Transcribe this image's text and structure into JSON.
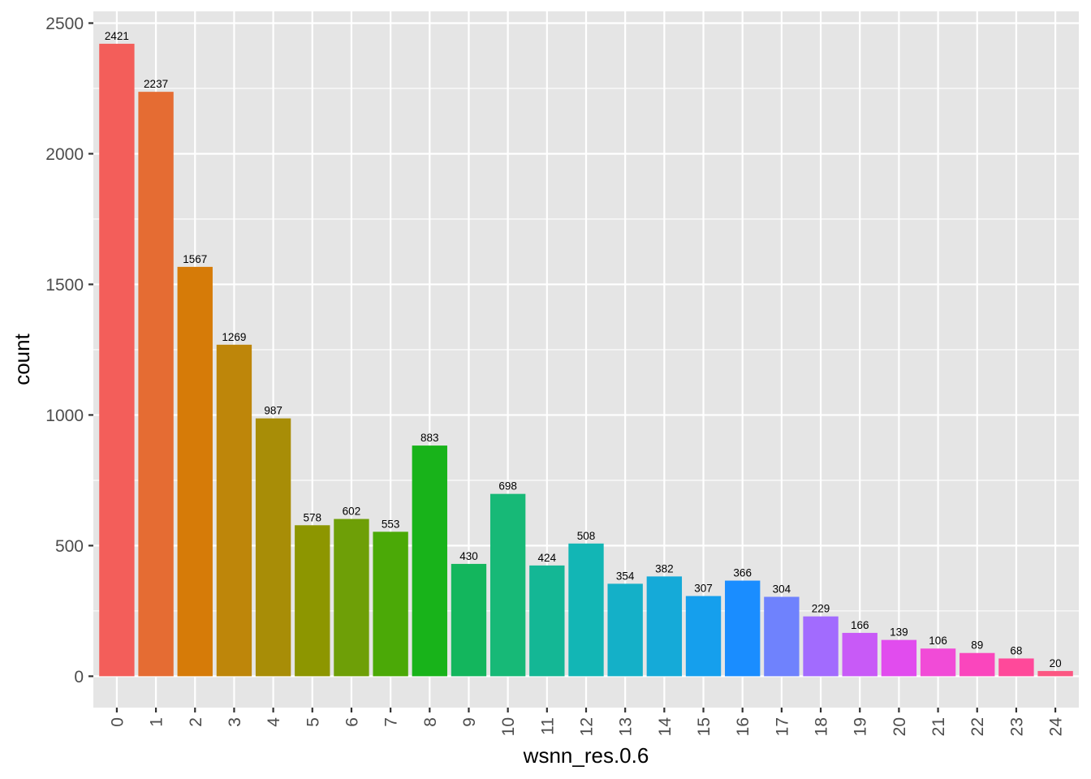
{
  "chart_data": {
    "type": "bar",
    "xlabel": "wsnn_res.0.6",
    "ylabel": "count",
    "categories": [
      "0",
      "1",
      "2",
      "3",
      "4",
      "5",
      "6",
      "7",
      "8",
      "9",
      "10",
      "11",
      "12",
      "13",
      "14",
      "15",
      "16",
      "17",
      "18",
      "19",
      "20",
      "21",
      "22",
      "23",
      "24"
    ],
    "values": [
      2421,
      2237,
      1567,
      1269,
      987,
      578,
      602,
      553,
      883,
      430,
      698,
      424,
      508,
      354,
      382,
      307,
      366,
      304,
      229,
      166,
      139,
      106,
      89,
      68,
      20
    ],
    "data_labels": [
      "2421",
      "2237",
      "1567",
      "1269",
      "987",
      "578",
      "602",
      "553",
      "883",
      "430",
      "698",
      "424",
      "508",
      "354",
      "382",
      "307",
      "366",
      "304",
      "229",
      "166",
      "139",
      "106",
      "89",
      "68",
      "20"
    ],
    "colors": [
      "#F8766D",
      "#EA8331",
      "#D89000",
      "#C09B00",
      "#A3A500",
      "#7CAE00",
      "#39B600",
      "#00BB4E",
      "#00BF7D",
      "#00C1A3",
      "#00BFC4",
      "#00BAE0",
      "#00B0F6",
      "#35A2FF",
      "#9590FF",
      "#C77CFF",
      "#E76BF3",
      "#FA62DB",
      "#FF62BC",
      "#FF6C91"
    ],
    "bar_colors": [
      "#F35E5A",
      "#E56C33",
      "#D67B08",
      "#BE860A",
      "#A88D07",
      "#8D9600",
      "#6E9F07",
      "#4BA907",
      "#18B31A",
      "#13B65D",
      "#17B977",
      "#14B795",
      "#12B6B5",
      "#14B0C8",
      "#15AAD8",
      "#159FED",
      "#1A8DFF",
      "#6F82FD",
      "#A26BFE",
      "#C85AF7",
      "#E14CEE",
      "#F14BD7",
      "#FA46BD",
      "#FF499A",
      "#FC5682"
    ],
    "yticks": [
      0,
      500,
      1000,
      1500,
      2000,
      2500
    ],
    "ytick_labels": [
      "0",
      "500",
      "1000",
      "1500",
      "2000",
      "2500"
    ],
    "ylim": [
      -120,
      2545
    ],
    "grid": true,
    "panel_background": "#E5E5E5",
    "grid_color": "#FFFFFF"
  }
}
